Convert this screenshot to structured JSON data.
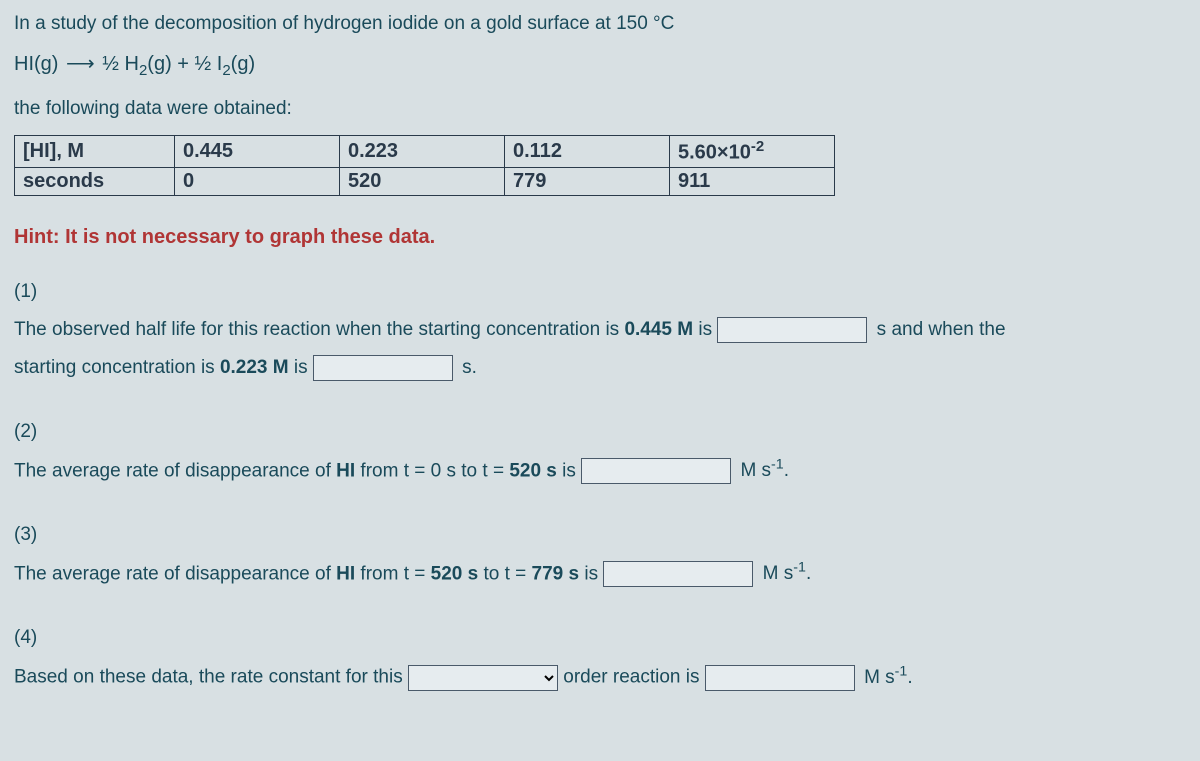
{
  "intro": "In a study of the decomposition of hydrogen iodide on a gold surface at 150 °C",
  "equation": {
    "lhs": "HI(g)",
    "rhs_a": "½ H",
    "rhs_a_sub": "2",
    "rhs_a_tail": "(g) + ½ I",
    "rhs_b_sub": "2",
    "rhs_b_tail": "(g)"
  },
  "obtained": "the following data were obtained:",
  "table": {
    "row1_hdr": "[HI], M",
    "row1": [
      "0.445",
      "0.223",
      "0.112",
      "5.60×10"
    ],
    "row1_last_sup": "-2",
    "row2_hdr": "seconds",
    "row2": [
      "0",
      "520",
      "779",
      "911"
    ]
  },
  "hint": "Hint: It is not necessary to graph these data.",
  "q1": {
    "num": "(1)",
    "text_a": "The observed half life for this reaction when the starting concentration is ",
    "conc_a": "0.445 M",
    "text_b": " is ",
    "unit_a": "s and when the",
    "text_c": "starting concentration is ",
    "conc_b": "0.223 M",
    "text_d": " is ",
    "unit_b": "s."
  },
  "q2": {
    "num": "(2)",
    "text_a": "The average rate of disappearance of ",
    "species": "HI",
    "text_b": " from t = 0 s to t = ",
    "t_end": "520 s",
    "text_c": " is ",
    "unit": "M s",
    "unit_sup": "-1",
    "unit_tail": "."
  },
  "q3": {
    "num": "(3)",
    "text_a": "The average rate of disappearance of ",
    "species": "HI",
    "text_b": " from t = ",
    "t_start": "520 s",
    "text_c": " to t = ",
    "t_end": "779 s",
    "text_d": " is ",
    "unit": "M s",
    "unit_sup": "-1",
    "unit_tail": "."
  },
  "q4": {
    "num": "(4)",
    "text_a": "Based on these data, the rate constant for this ",
    "text_b": " order reaction is ",
    "unit": "M s",
    "unit_sup": "-1",
    "unit_tail": "."
  }
}
